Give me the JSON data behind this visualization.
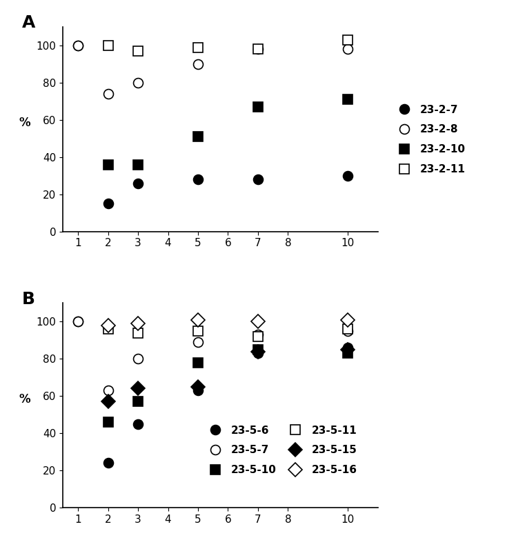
{
  "panel_A": {
    "label": "A",
    "ylabel": "%",
    "xlim": [
      0.5,
      11
    ],
    "ylim": [
      0,
      110
    ],
    "xticks": [
      1,
      2,
      3,
      4,
      5,
      6,
      7,
      8,
      10
    ],
    "yticks": [
      0,
      20,
      40,
      60,
      80,
      100
    ],
    "series": [
      {
        "label": "23-2-7",
        "marker": "o",
        "filled": true,
        "x": [
          1,
          2,
          3,
          5,
          7,
          10
        ],
        "y": [
          100,
          15,
          26,
          28,
          28,
          30
        ]
      },
      {
        "label": "23-2-8",
        "marker": "o",
        "filled": false,
        "x": [
          1,
          2,
          3,
          5,
          7,
          10
        ],
        "y": [
          100,
          74,
          80,
          90,
          98,
          98
        ]
      },
      {
        "label": "23-2-10",
        "marker": "s",
        "filled": true,
        "x": [
          2,
          3,
          5,
          7,
          10
        ],
        "y": [
          36,
          36,
          51,
          67,
          71
        ]
      },
      {
        "label": "23-2-11",
        "marker": "s",
        "filled": false,
        "x": [
          2,
          3,
          5,
          7,
          10
        ],
        "y": [
          100,
          97,
          99,
          98,
          103
        ]
      }
    ]
  },
  "panel_B": {
    "label": "B",
    "ylabel": "%",
    "xlim": [
      0.5,
      11
    ],
    "ylim": [
      0,
      110
    ],
    "xticks": [
      1,
      2,
      3,
      4,
      5,
      6,
      7,
      8,
      10
    ],
    "yticks": [
      0,
      20,
      40,
      60,
      80,
      100
    ],
    "series": [
      {
        "label": "23-5-6",
        "marker": "o",
        "filled": true,
        "x": [
          1,
          2,
          3,
          5,
          7,
          10
        ],
        "y": [
          100,
          24,
          45,
          63,
          83,
          86
        ]
      },
      {
        "label": "23-5-7",
        "marker": "o",
        "filled": false,
        "x": [
          1,
          2,
          3,
          5,
          7,
          10
        ],
        "y": [
          100,
          63,
          80,
          89,
          93,
          95
        ]
      },
      {
        "label": "23-5-10",
        "marker": "s",
        "filled": true,
        "x": [
          2,
          3,
          5,
          7,
          10
        ],
        "y": [
          46,
          57,
          78,
          85,
          83
        ]
      },
      {
        "label": "23-5-11",
        "marker": "s",
        "filled": false,
        "x": [
          2,
          3,
          5,
          7,
          10
        ],
        "y": [
          96,
          94,
          95,
          92,
          96
        ]
      },
      {
        "label": "23-5-15",
        "marker": "D",
        "filled": true,
        "x": [
          2,
          3,
          5,
          7,
          10
        ],
        "y": [
          57,
          64,
          65,
          84,
          85
        ]
      },
      {
        "label": "23-5-16",
        "marker": "D",
        "filled": false,
        "x": [
          2,
          3,
          5,
          7,
          10
        ],
        "y": [
          98,
          99,
          101,
          100,
          101
        ]
      }
    ]
  },
  "marker_size": 10,
  "legend_fontsize": 11,
  "tick_fontsize": 11,
  "label_fontsize": 12,
  "panel_label_fontsize": 18,
  "background_color": "#ffffff"
}
